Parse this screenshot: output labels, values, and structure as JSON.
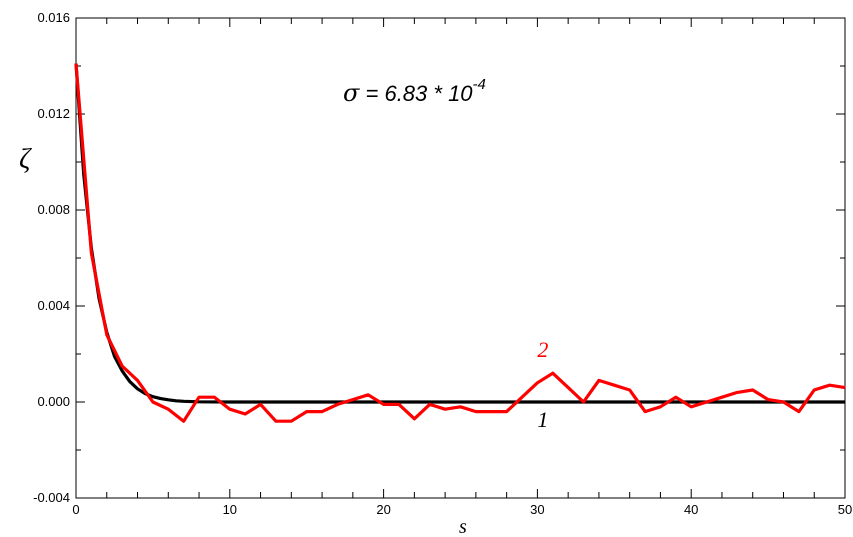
{
  "chart_data": {
    "type": "line",
    "xlabel": "s",
    "ylabel": "ζ",
    "xlim": [
      0,
      50
    ],
    "ylim": [
      -0.004,
      0.016
    ],
    "x_ticks": [
      "0",
      "10",
      "20",
      "30",
      "40",
      "50"
    ],
    "y_ticks": [
      "-0.004",
      "0.000",
      "0.004",
      "0.008",
      "0.012",
      "0.016"
    ],
    "grid": false,
    "annotation": {
      "sigma": "σ",
      "text": " = 6.83 * 10",
      "exponent": "-4"
    },
    "series": [
      {
        "name": "1",
        "color": "#000000",
        "x": [
          0,
          0.5,
          1,
          1.5,
          2,
          2.5,
          3,
          3.5,
          4,
          4.5,
          5,
          5.5,
          6,
          6.5,
          7,
          8,
          10,
          15,
          20,
          25,
          30,
          35,
          40,
          45,
          50
        ],
        "y": [
          0.0141,
          0.0095,
          0.0064,
          0.0043,
          0.0029,
          0.0019,
          0.0013,
          0.00085,
          0.00055,
          0.00035,
          0.00022,
          0.00014,
          9e-05,
          5e-05,
          3e-05,
          1e-05,
          0,
          0,
          0,
          0,
          0,
          0,
          0,
          0,
          0
        ]
      },
      {
        "name": "2",
        "color": "#ff0000",
        "x": [
          0,
          1,
          2,
          3,
          4,
          5,
          6,
          7,
          8,
          9,
          10,
          11,
          12,
          13,
          14,
          15,
          16,
          17,
          18,
          19,
          20,
          21,
          22,
          23,
          24,
          25,
          26,
          27,
          28,
          29,
          30,
          31,
          32,
          33,
          34,
          35,
          36,
          37,
          38,
          39,
          40,
          41,
          42,
          43,
          44,
          45,
          46,
          47,
          48,
          49,
          50
        ],
        "y": [
          0.0141,
          0.0062,
          0.0028,
          0.0015,
          0.0009,
          0.0,
          -0.0003,
          -0.0008,
          0.0002,
          0.0002,
          -0.0003,
          -0.0005,
          -0.0001,
          -0.0008,
          -0.0008,
          -0.0004,
          -0.0004,
          -0.0001,
          0.0001,
          0.0003,
          -0.0001,
          -0.0001,
          -0.0007,
          -0.0001,
          -0.0003,
          -0.0002,
          -0.0004,
          -0.0004,
          -0.0004,
          0.0002,
          0.0008,
          0.0012,
          0.0006,
          0.0,
          0.0009,
          0.0007,
          0.0005,
          -0.0004,
          -0.0002,
          0.0002,
          -0.0002,
          0.0,
          0.0002,
          0.0004,
          0.0005,
          0.0001,
          0.0,
          -0.0004,
          0.0005,
          0.0007,
          0.0006
        ]
      }
    ],
    "curve_labels": [
      {
        "series": "1",
        "text": "1",
        "x": 30,
        "y": -0.0007
      },
      {
        "series": "2",
        "text": "2",
        "x": 30,
        "y": 0.0022
      }
    ]
  }
}
